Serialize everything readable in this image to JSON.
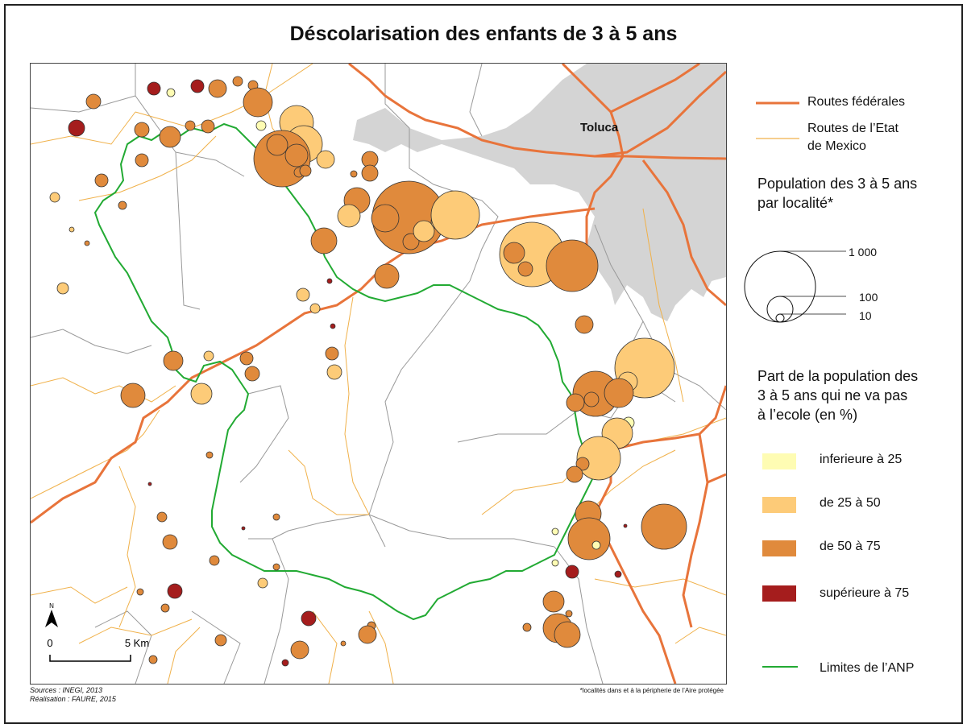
{
  "title": "Déscolarisation des enfants de 3 à 5 ans",
  "colors": {
    "federal_road": "#e8743b",
    "state_road": "#f0b14a",
    "anp_boundary": "#22aa33",
    "urban": "#d4d4d4",
    "municipal_border": "#999999",
    "class_lt25": "#fefcb3",
    "class_25_50": "#fdcb78",
    "class_50_75": "#e08a3c",
    "class_gt75": "#a51d1d"
  },
  "city_label": "Toluca",
  "legend": {
    "federal_roads": "Routes fédérales",
    "state_roads_line1": "Routes de l’Etat",
    "state_roads_line2": "de Mexico",
    "population_title_line1": "Population des 3 à 5 ans",
    "population_title_line2": "par localité*",
    "size_1000": "1 000",
    "size_100": "100",
    "size_10": "10",
    "share_title_line1": "Part de la population des",
    "share_title_line2": "3 à 5 ans qui ne va pas",
    "share_title_line3": "à l’ecole (en %)",
    "classes": [
      {
        "label": "inferieure à 25"
      },
      {
        "label": "de 25 à 50"
      },
      {
        "label": "de 50 à 75"
      },
      {
        "label": "supérieure à 75"
      }
    ],
    "anp_limits": "Limites de l’ANP"
  },
  "north_label": "N",
  "scale": {
    "start": "0",
    "end": "5 Km"
  },
  "sources_line1": "Sources : INEGI, 2013",
  "sources_line2": "Réalisation : FAURE, 2015",
  "footnote": "*localités dans et à la péripherie de l’Aire protégée"
}
